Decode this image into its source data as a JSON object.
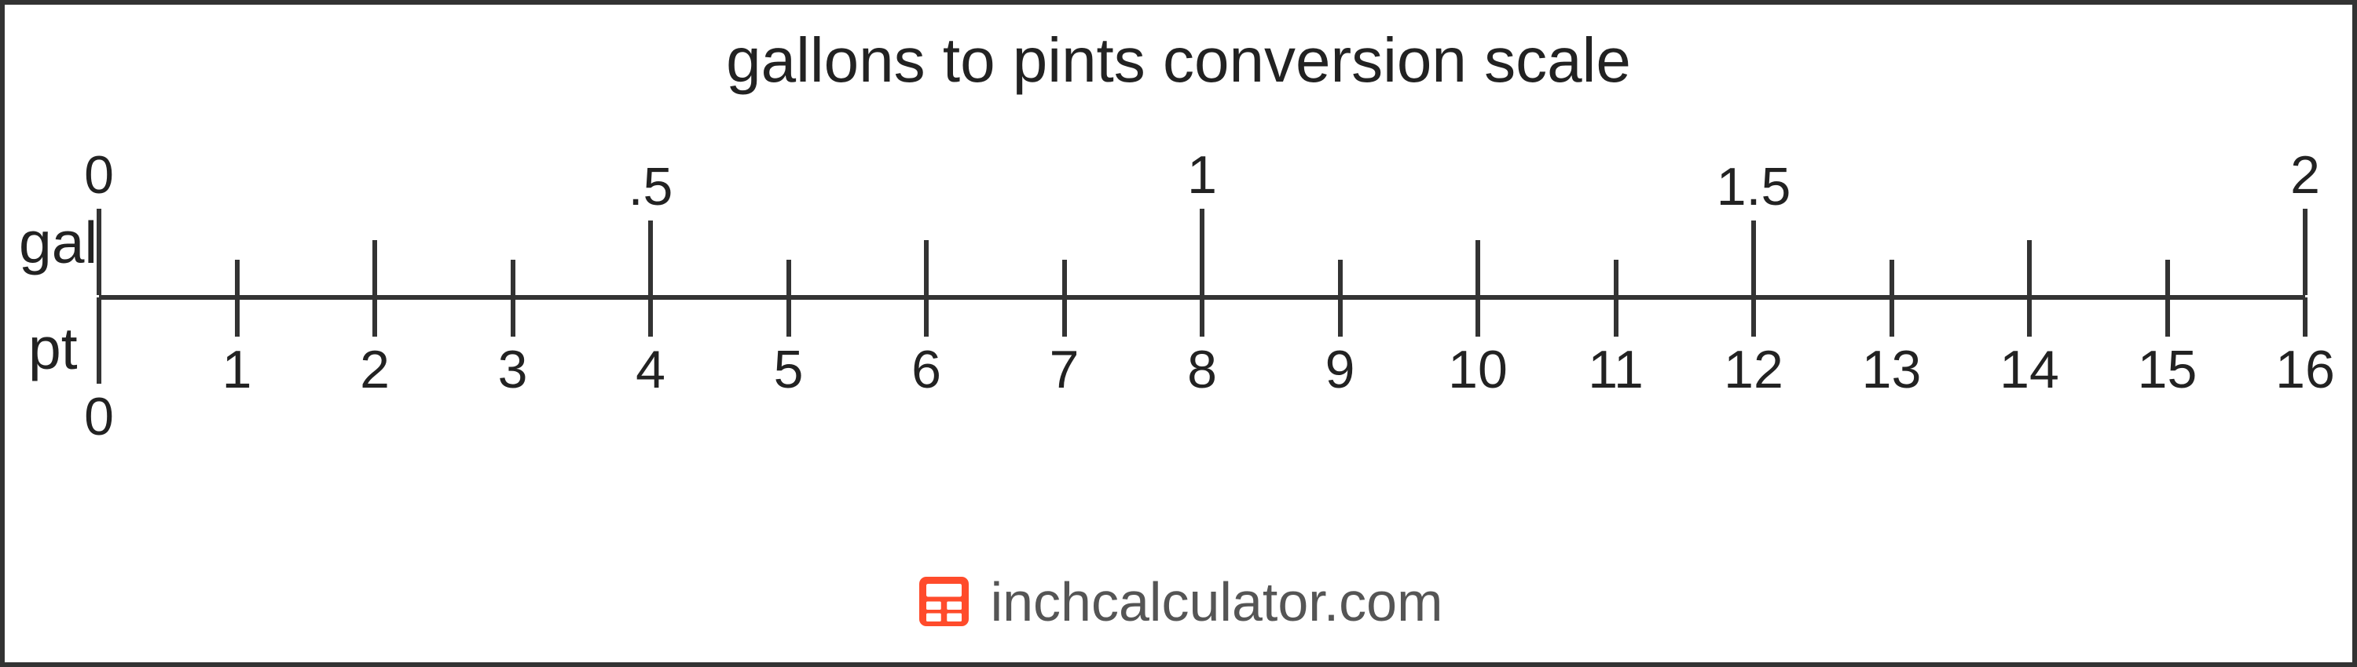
{
  "title": "gallons to pints conversion scale",
  "units": {
    "top": "gal",
    "bottom": "pt"
  },
  "footer": {
    "text": "inchcalculator.com",
    "icon_color": "#ff4b2b",
    "icon_name": "calculator-icon"
  },
  "colors": {
    "border": "#333333",
    "axis": "#333333",
    "text": "#222222",
    "footer_text": "#555555",
    "background": "#ffffff"
  },
  "scale": {
    "min_gal": 0,
    "max_gal": 2,
    "pints_per_gallon": 8,
    "gal_ticks": [
      {
        "value": 0,
        "label": "0",
        "height": 110,
        "label_show": true
      },
      {
        "value": 0.125,
        "label": "",
        "height": 45,
        "label_show": false
      },
      {
        "value": 0.25,
        "label": "",
        "height": 70,
        "label_show": false
      },
      {
        "value": 0.375,
        "label": "",
        "height": 45,
        "label_show": false
      },
      {
        "value": 0.5,
        "label": ".5",
        "height": 95,
        "label_show": true
      },
      {
        "value": 0.625,
        "label": "",
        "height": 45,
        "label_show": false
      },
      {
        "value": 0.75,
        "label": "",
        "height": 70,
        "label_show": false
      },
      {
        "value": 0.875,
        "label": "",
        "height": 45,
        "label_show": false
      },
      {
        "value": 1,
        "label": "1",
        "height": 110,
        "label_show": true
      },
      {
        "value": 1.125,
        "label": "",
        "height": 45,
        "label_show": false
      },
      {
        "value": 1.25,
        "label": "",
        "height": 70,
        "label_show": false
      },
      {
        "value": 1.375,
        "label": "",
        "height": 45,
        "label_show": false
      },
      {
        "value": 1.5,
        "label": "1.5",
        "height": 95,
        "label_show": true
      },
      {
        "value": 1.625,
        "label": "",
        "height": 45,
        "label_show": false
      },
      {
        "value": 1.75,
        "label": "",
        "height": 70,
        "label_show": false
      },
      {
        "value": 1.875,
        "label": "",
        "height": 45,
        "label_show": false
      },
      {
        "value": 2,
        "label": "2",
        "height": 110,
        "label_show": true
      }
    ],
    "pt_ticks": [
      {
        "value": 0,
        "label": "0",
        "height": 110
      },
      {
        "value": 1,
        "label": "1",
        "height": 50
      },
      {
        "value": 2,
        "label": "2",
        "height": 50
      },
      {
        "value": 3,
        "label": "3",
        "height": 50
      },
      {
        "value": 4,
        "label": "4",
        "height": 50
      },
      {
        "value": 5,
        "label": "5",
        "height": 50
      },
      {
        "value": 6,
        "label": "6",
        "height": 50
      },
      {
        "value": 7,
        "label": "7",
        "height": 50
      },
      {
        "value": 8,
        "label": "8",
        "height": 50
      },
      {
        "value": 9,
        "label": "9",
        "height": 50
      },
      {
        "value": 10,
        "label": "10",
        "height": 50
      },
      {
        "value": 11,
        "label": "11",
        "height": 50
      },
      {
        "value": 12,
        "label": "12",
        "height": 50
      },
      {
        "value": 13,
        "label": "13",
        "height": 50
      },
      {
        "value": 14,
        "label": "14",
        "height": 50
      },
      {
        "value": 15,
        "label": "15",
        "height": 50
      },
      {
        "value": 16,
        "label": "16",
        "height": 50
      }
    ]
  }
}
